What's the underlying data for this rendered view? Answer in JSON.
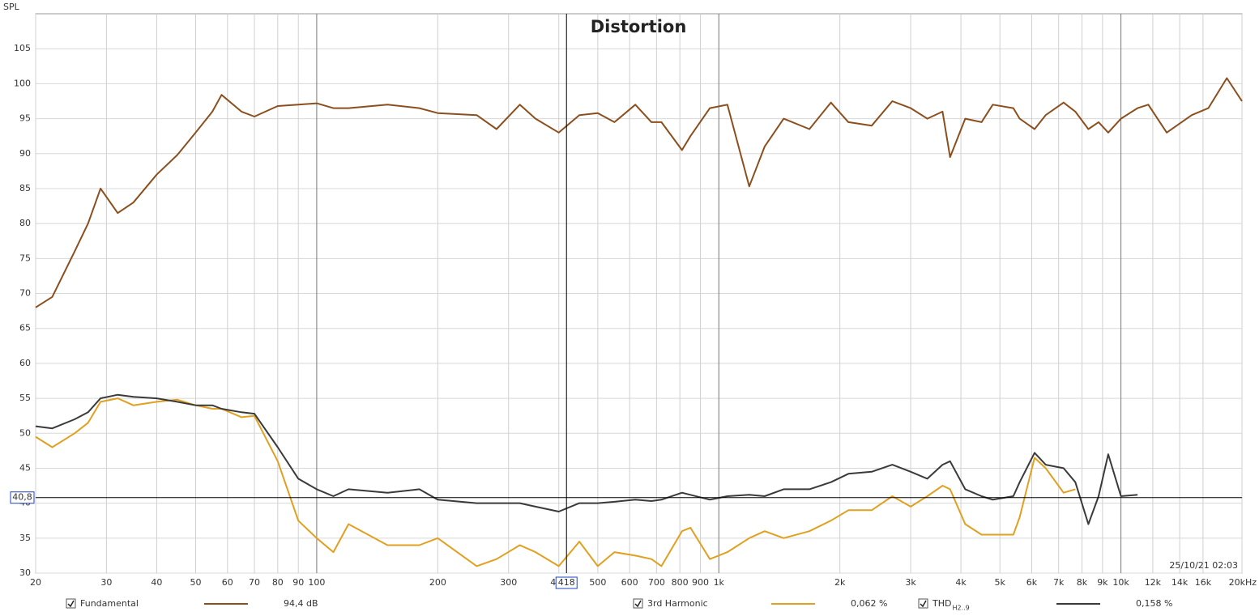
{
  "chart_data": {
    "type": "line",
    "title": "Distortion",
    "y_label": "SPL",
    "timestamp": "25/10/21 02:03",
    "log_x": true,
    "grid": true,
    "xlim": [
      20,
      20000
    ],
    "ylim": [
      30,
      110
    ],
    "yticks": [
      30,
      35,
      40,
      45,
      50,
      55,
      60,
      65,
      70,
      75,
      80,
      85,
      90,
      95,
      100,
      105
    ],
    "xticks": [
      20,
      30,
      40,
      50,
      60,
      70,
      80,
      90,
      100,
      200,
      300,
      400,
      500,
      600,
      700,
      800,
      900,
      {
        "value": 1000,
        "label": "1k"
      },
      {
        "value": 2000,
        "label": "2k"
      },
      {
        "value": 3000,
        "label": "3k"
      },
      {
        "value": 4000,
        "label": "4k"
      },
      {
        "value": 5000,
        "label": "5k"
      },
      {
        "value": 6000,
        "label": "6k"
      },
      {
        "value": 7000,
        "label": "7k"
      },
      {
        "value": 8000,
        "label": "8k"
      },
      {
        "value": 9000,
        "label": "9k"
      },
      {
        "value": 10000,
        "label": "10k"
      },
      {
        "value": 12000,
        "label": "12k"
      },
      {
        "value": 14000,
        "label": "14k"
      },
      {
        "value": 16000,
        "label": "16k"
      },
      {
        "value": 20000,
        "label": "20kHz"
      }
    ],
    "cursor": {
      "x": 418,
      "x_label": "418",
      "y": 40.8,
      "y_label": "40,8"
    },
    "x": [
      20,
      22,
      25,
      27,
      29,
      32,
      35,
      40,
      45,
      50,
      55,
      58,
      65,
      70,
      80,
      90,
      100,
      110,
      120,
      150,
      180,
      200,
      250,
      280,
      320,
      350,
      400,
      450,
      500,
      550,
      620,
      680,
      720,
      810,
      850,
      950,
      1050,
      1190,
      1300,
      1450,
      1680,
      1900,
      2100,
      2400,
      2700,
      3000,
      3300,
      3600,
      3760,
      4100,
      4500,
      4800,
      5400,
      5600,
      6100,
      6500,
      7200,
      7700,
      8300,
      8800,
      9300,
      10000,
      11000,
      11700,
      13000,
      15000,
      16500,
      18340,
      20000
    ],
    "series": [
      {
        "name": "Fundamental",
        "color": "#8b4f1e",
        "legend_value": "94,4 dB",
        "values": [
          68,
          69.5,
          76,
          80,
          85,
          81.5,
          83,
          87,
          89.8,
          93,
          96,
          98.4,
          96,
          95.3,
          96.8,
          97,
          97.2,
          96.5,
          96.5,
          97,
          96.5,
          95.8,
          95.5,
          93.5,
          97,
          95,
          93,
          95.5,
          95.8,
          94.5,
          97,
          94.5,
          94.5,
          90.5,
          92.5,
          96.5,
          97,
          85.3,
          91,
          95,
          93.5,
          97.3,
          94.5,
          94,
          97.5,
          96.5,
          95,
          96,
          89.5,
          95,
          94.5,
          97,
          96.5,
          95,
          93.5,
          95.5,
          97.3,
          96,
          93.5,
          94.5,
          93,
          95,
          96.5,
          97,
          93,
          95.5,
          96.5,
          100.8,
          97.5
        ]
      },
      {
        "name": "3rd Harmonic",
        "color": "#e0a020",
        "legend_value": "0,062 %",
        "values": [
          49.5,
          48,
          50,
          51.5,
          54.5,
          55,
          54,
          54.5,
          54.8,
          54,
          53.5,
          53.5,
          52.3,
          52.5,
          46,
          37.5,
          35,
          33,
          37,
          34,
          34,
          35,
          31,
          32,
          34,
          33,
          31,
          34.5,
          31,
          33,
          32.5,
          32,
          31,
          36,
          36.5,
          32,
          33,
          35,
          36,
          35,
          36,
          37.5,
          39,
          39,
          41,
          39.5,
          41,
          42.5,
          42,
          37,
          35.5,
          35.5,
          35.5,
          38,
          46.5,
          45,
          41.5,
          42,
          null,
          null,
          null,
          null,
          null,
          null,
          null,
          null,
          null,
          null,
          null
        ]
      },
      {
        "name": "THD",
        "name_subscript": "H2..9",
        "color": "#3a3a3a",
        "legend_value": "0,158 %",
        "values": [
          51,
          50.7,
          52,
          53,
          55,
          55.5,
          55.2,
          55,
          54.5,
          54,
          54,
          53.5,
          53,
          52.8,
          48,
          43.5,
          42,
          41,
          42,
          41.5,
          42,
          40.5,
          40,
          40,
          40,
          39.5,
          38.8,
          40,
          40,
          40.2,
          40.5,
          40.3,
          40.5,
          41.5,
          41.2,
          40.5,
          41,
          41.2,
          41,
          42,
          42,
          43,
          44.2,
          44.5,
          45.5,
          44.5,
          43.5,
          45.5,
          46,
          42,
          41,
          40.5,
          41,
          43,
          47.2,
          45.5,
          45,
          43,
          37,
          41,
          47,
          41,
          41.2,
          null,
          null,
          null,
          null,
          null,
          null
        ]
      }
    ]
  }
}
